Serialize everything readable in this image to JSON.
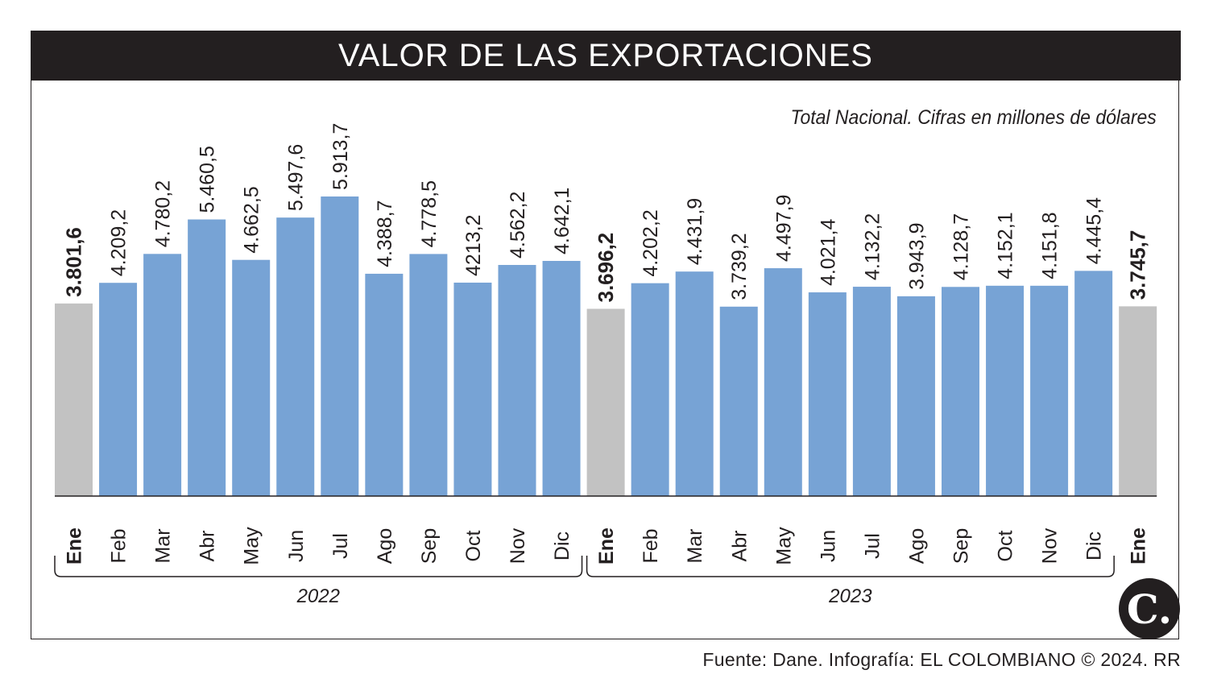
{
  "header": {
    "title": "VALOR DE LAS EXPORTACIONES"
  },
  "subtitle": "Total Nacional. Cifras en millones de dólares",
  "source": "Fuente: Dane. Infografía: EL COLOMBIANO © 2024. RR",
  "logo": {
    "icon": "el-colombiano-logo",
    "text": "C."
  },
  "colors": {
    "bar": "#77a3d5",
    "highlight": "#c2c2c2",
    "title_bg": "#231f20",
    "text": "#231f20"
  },
  "chart_data": {
    "type": "bar",
    "categories": [
      "Ene",
      "Feb",
      "Mar",
      "Abr",
      "May",
      "Jun",
      "Jul",
      "Ago",
      "Sep",
      "Oct",
      "Nov",
      "Dic",
      "Ene",
      "Feb",
      "Mar",
      "Abr",
      "May",
      "Jun",
      "Jul",
      "Ago",
      "Sep",
      "Oct",
      "Nov",
      "Dic",
      "Ene"
    ],
    "values": [
      3801.6,
      4209.2,
      4780.2,
      5460.5,
      4662.5,
      5497.6,
      5913.7,
      4388.7,
      4778.5,
      4213.2,
      4562.2,
      4642.1,
      3696.2,
      4202.2,
      4431.9,
      3739.2,
      4497.9,
      4021.4,
      4132.2,
      3943.9,
      4128.7,
      4152.1,
      4151.8,
      4445.4,
      3745.7
    ],
    "labels": [
      "3.801,6",
      "4.209,2",
      "4.780,2",
      "5.460,5",
      "4.662,5",
      "5.497,6",
      "5.913,7",
      "4.388,7",
      "4.778,5",
      "4213,2",
      "4.562,2",
      "4.642,1",
      "3.696,2",
      "4.202,2",
      "4.431,9",
      "3.739,2",
      "4.497,9",
      "4.021,4",
      "4.132,2",
      "3.943,9",
      "4.128,7",
      "4.152,1",
      "4.151,8",
      "4.445,4",
      "3.745,7"
    ],
    "highlighted": [
      0,
      12,
      24
    ],
    "groups": [
      {
        "label": "2022",
        "from": 0,
        "to": 11
      },
      {
        "label": "2023",
        "from": 12,
        "to": 23
      }
    ],
    "ylim": [
      0,
      6000
    ]
  }
}
